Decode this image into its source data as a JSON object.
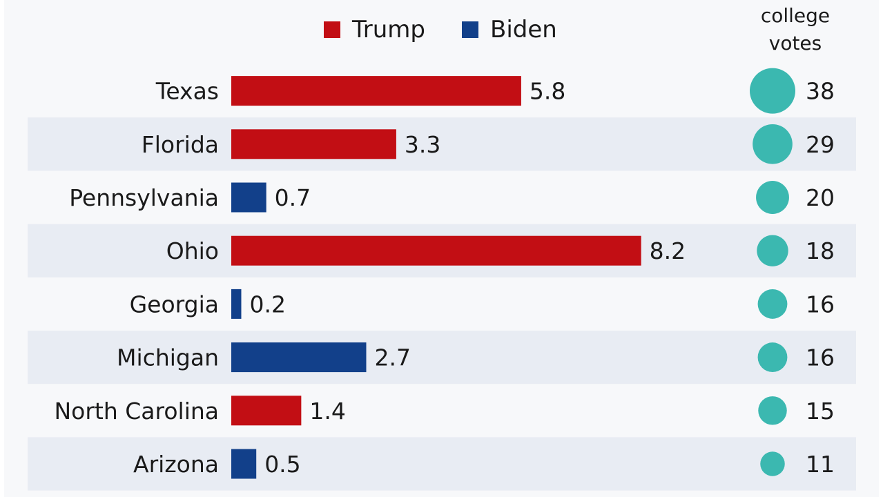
{
  "chart_data": {
    "type": "bar",
    "series": [
      {
        "name": "Trump",
        "color": "#c20e14"
      },
      {
        "name": "Biden",
        "color": "#12408a"
      }
    ],
    "header_lines": [
      "college",
      "votes"
    ],
    "categories": [
      "Texas",
      "Florida",
      "Pennsylvania",
      "Ohio",
      "Georgia",
      "Michigan",
      "North Carolina",
      "Arizona"
    ],
    "values": [
      5.8,
      3.3,
      0.7,
      8.2,
      0.2,
      2.7,
      1.4,
      0.5
    ],
    "value_labels": [
      "5.8",
      "3.3",
      "0.7",
      "8.2",
      "0.2",
      "2.7",
      "1.4",
      "0.5"
    ],
    "leader": [
      "Trump",
      "Trump",
      "Biden",
      "Trump",
      "Biden",
      "Biden",
      "Trump",
      "Biden"
    ],
    "electoral_votes": [
      38,
      29,
      20,
      18,
      16,
      16,
      15,
      11
    ],
    "electoral_vote_labels": [
      "38",
      "29",
      "20",
      "18",
      "16",
      "16",
      "15",
      "11"
    ],
    "circle_color": "#3bb8b0",
    "stripe_color": "#e8ecf3",
    "grid": false
  }
}
